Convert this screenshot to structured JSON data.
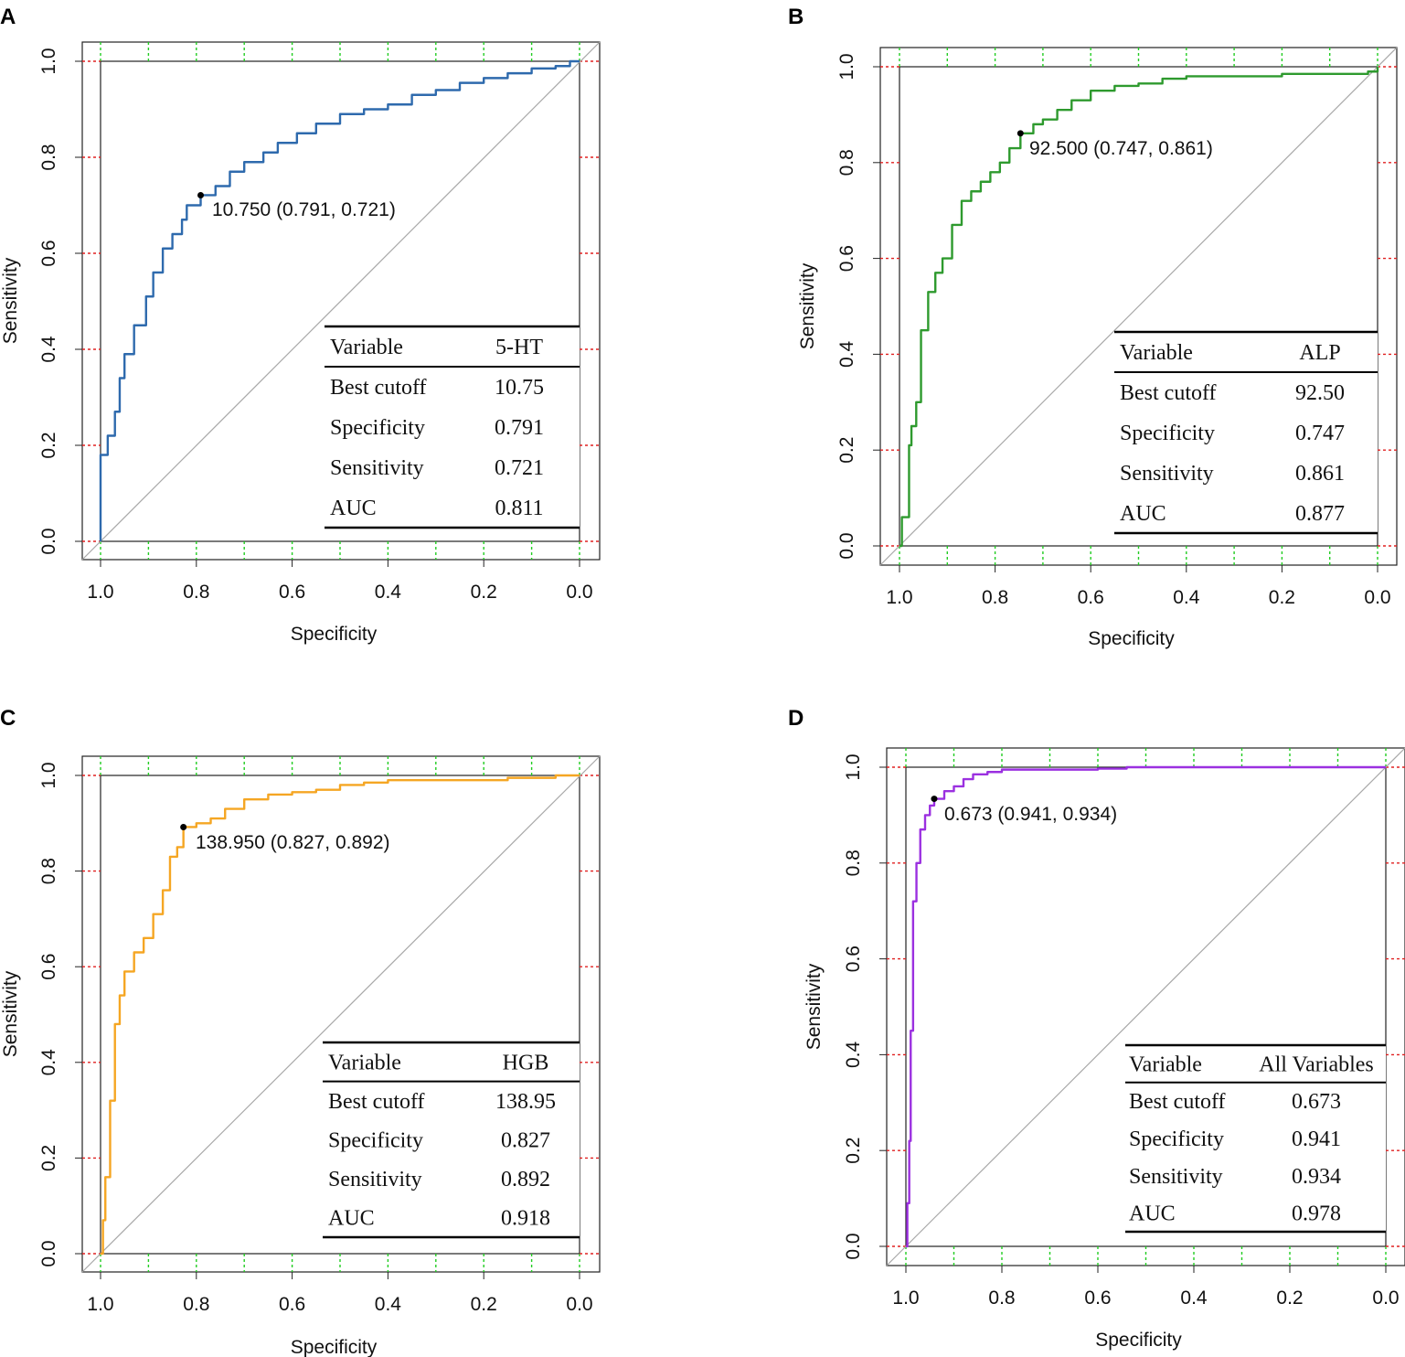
{
  "figure": {
    "x_axis_label": "Specificity",
    "y_axis_label": "Sensitivity"
  },
  "chart_data": [
    {
      "panel": "A",
      "type": "line",
      "title": "",
      "xlabel": "Specificity",
      "ylabel": "Sensitivity",
      "xlim": [
        1.0,
        0.0
      ],
      "ylim": [
        0.0,
        1.0
      ],
      "x_ticks": [
        "1.0",
        "0.8",
        "0.6",
        "0.4",
        "0.2",
        "0.0"
      ],
      "y_ticks": [
        "0.0",
        "0.2",
        "0.4",
        "0.6",
        "0.8",
        "1.0"
      ],
      "series": [
        {
          "name": "5-HT ROC",
          "color": "#2e6aad",
          "specificity": [
            1.0,
            1.0,
            0.985,
            0.97,
            0.96,
            0.95,
            0.93,
            0.905,
            0.89,
            0.87,
            0.85,
            0.83,
            0.82,
            0.791,
            0.76,
            0.73,
            0.7,
            0.66,
            0.63,
            0.59,
            0.55,
            0.5,
            0.45,
            0.4,
            0.35,
            0.3,
            0.25,
            0.2,
            0.15,
            0.1,
            0.05,
            0.02,
            0.0
          ],
          "sensitivity": [
            0.0,
            0.18,
            0.22,
            0.27,
            0.34,
            0.39,
            0.45,
            0.51,
            0.56,
            0.61,
            0.64,
            0.67,
            0.7,
            0.721,
            0.74,
            0.77,
            0.79,
            0.81,
            0.83,
            0.85,
            0.87,
            0.89,
            0.9,
            0.91,
            0.93,
            0.94,
            0.955,
            0.965,
            0.975,
            0.985,
            0.99,
            1.0,
            1.0
          ]
        }
      ],
      "best_point": {
        "specificity": 0.791,
        "sensitivity": 0.721,
        "label": "10.750 (0.791, 0.721)"
      },
      "table": {
        "header": [
          "Variable",
          "5-HT"
        ],
        "rows": [
          [
            "Best cutoff",
            "10.75"
          ],
          [
            "Specificity",
            "0.791"
          ],
          [
            "Sensitivity",
            "0.721"
          ],
          [
            "AUC",
            "0.811"
          ]
        ]
      }
    },
    {
      "panel": "B",
      "type": "line",
      "title": "",
      "xlabel": "Specificity",
      "ylabel": "Sensitivity",
      "xlim": [
        1.0,
        0.0
      ],
      "ylim": [
        0.0,
        1.0
      ],
      "x_ticks": [
        "1.0",
        "0.8",
        "0.6",
        "0.4",
        "0.2",
        "0.0"
      ],
      "y_ticks": [
        "0.0",
        "0.2",
        "0.4",
        "0.6",
        "0.8",
        "1.0"
      ],
      "series": [
        {
          "name": "ALP ROC",
          "color": "#2e9a2e",
          "specificity": [
            1.0,
            0.995,
            0.98,
            0.975,
            0.965,
            0.955,
            0.94,
            0.925,
            0.91,
            0.89,
            0.87,
            0.85,
            0.83,
            0.81,
            0.79,
            0.77,
            0.747,
            0.72,
            0.7,
            0.67,
            0.64,
            0.6,
            0.55,
            0.5,
            0.45,
            0.4,
            0.3,
            0.2,
            0.1,
            0.02,
            0.0
          ],
          "sensitivity": [
            0.0,
            0.06,
            0.21,
            0.25,
            0.3,
            0.45,
            0.53,
            0.57,
            0.6,
            0.67,
            0.72,
            0.74,
            0.76,
            0.78,
            0.8,
            0.83,
            0.861,
            0.88,
            0.89,
            0.91,
            0.93,
            0.95,
            0.96,
            0.965,
            0.975,
            0.98,
            0.98,
            0.985,
            0.985,
            0.99,
            1.0
          ]
        }
      ],
      "best_point": {
        "specificity": 0.747,
        "sensitivity": 0.861,
        "label": "92.500 (0.747, 0.861)"
      },
      "table": {
        "header": [
          "Variable",
          "ALP"
        ],
        "rows": [
          [
            "Best cutoff",
            "92.50"
          ],
          [
            "Specificity",
            "0.747"
          ],
          [
            "Sensitivity",
            "0.861"
          ],
          [
            "AUC",
            "0.877"
          ]
        ]
      }
    },
    {
      "panel": "C",
      "type": "line",
      "title": "",
      "xlabel": "Specificity",
      "ylabel": "Sensitivity",
      "xlim": [
        1.0,
        0.0
      ],
      "ylim": [
        0.0,
        1.0
      ],
      "x_ticks": [
        "1.0",
        "0.8",
        "0.6",
        "0.4",
        "0.2",
        "0.0"
      ],
      "y_ticks": [
        "0.0",
        "0.2",
        "0.4",
        "0.6",
        "0.8",
        "1.0"
      ],
      "series": [
        {
          "name": "HGB ROC",
          "color": "#f5a623",
          "specificity": [
            1.0,
            0.995,
            0.99,
            0.98,
            0.97,
            0.96,
            0.95,
            0.93,
            0.91,
            0.89,
            0.87,
            0.855,
            0.84,
            0.827,
            0.8,
            0.77,
            0.74,
            0.7,
            0.65,
            0.6,
            0.55,
            0.5,
            0.45,
            0.4,
            0.3,
            0.2,
            0.15,
            0.1,
            0.05,
            0.0
          ],
          "sensitivity": [
            0.0,
            0.07,
            0.16,
            0.32,
            0.48,
            0.54,
            0.59,
            0.63,
            0.66,
            0.71,
            0.76,
            0.83,
            0.85,
            0.892,
            0.9,
            0.91,
            0.93,
            0.95,
            0.96,
            0.965,
            0.97,
            0.98,
            0.985,
            0.99,
            0.99,
            0.99,
            0.995,
            0.995,
            1.0,
            1.0
          ]
        }
      ],
      "best_point": {
        "specificity": 0.827,
        "sensitivity": 0.892,
        "label": "138.950 (0.827, 0.892)"
      },
      "table": {
        "header": [
          "Variable",
          "HGB"
        ],
        "rows": [
          [
            "Best cutoff",
            "138.95"
          ],
          [
            "Specificity",
            "0.827"
          ],
          [
            "Sensitivity",
            "0.892"
          ],
          [
            "AUC",
            "0.918"
          ]
        ]
      }
    },
    {
      "panel": "D",
      "type": "line",
      "title": "",
      "xlabel": "Specificity",
      "ylabel": "Sensitivity",
      "xlim": [
        1.0,
        0.0
      ],
      "ylim": [
        0.0,
        1.0
      ],
      "x_ticks": [
        "1.0",
        "0.8",
        "0.6",
        "0.4",
        "0.2",
        "0.0"
      ],
      "y_ticks": [
        "0.0",
        "0.2",
        "0.4",
        "0.6",
        "0.8",
        "1.0"
      ],
      "series": [
        {
          "name": "All Variables ROC",
          "color": "#9b30e0",
          "specificity": [
            1.0,
            0.997,
            0.993,
            0.99,
            0.985,
            0.978,
            0.97,
            0.96,
            0.95,
            0.941,
            0.92,
            0.9,
            0.88,
            0.86,
            0.83,
            0.8,
            0.75,
            0.7,
            0.6,
            0.54,
            0.5,
            0.4,
            0.3,
            0.2,
            0.1,
            0.0
          ],
          "sensitivity": [
            0.0,
            0.09,
            0.22,
            0.45,
            0.72,
            0.8,
            0.87,
            0.9,
            0.92,
            0.934,
            0.95,
            0.96,
            0.975,
            0.985,
            0.99,
            0.995,
            0.995,
            0.995,
            0.997,
            1.0,
            1.0,
            1.0,
            1.0,
            1.0,
            1.0,
            1.0
          ]
        }
      ],
      "best_point": {
        "specificity": 0.941,
        "sensitivity": 0.934,
        "label": "0.673 (0.941, 0.934)"
      },
      "table": {
        "header": [
          "Variable",
          "All Variables"
        ],
        "rows": [
          [
            "Best cutoff",
            "0.673"
          ],
          [
            "Specificity",
            "0.941"
          ],
          [
            "Sensitivity",
            "0.934"
          ],
          [
            "AUC",
            "0.978"
          ]
        ]
      }
    }
  ]
}
